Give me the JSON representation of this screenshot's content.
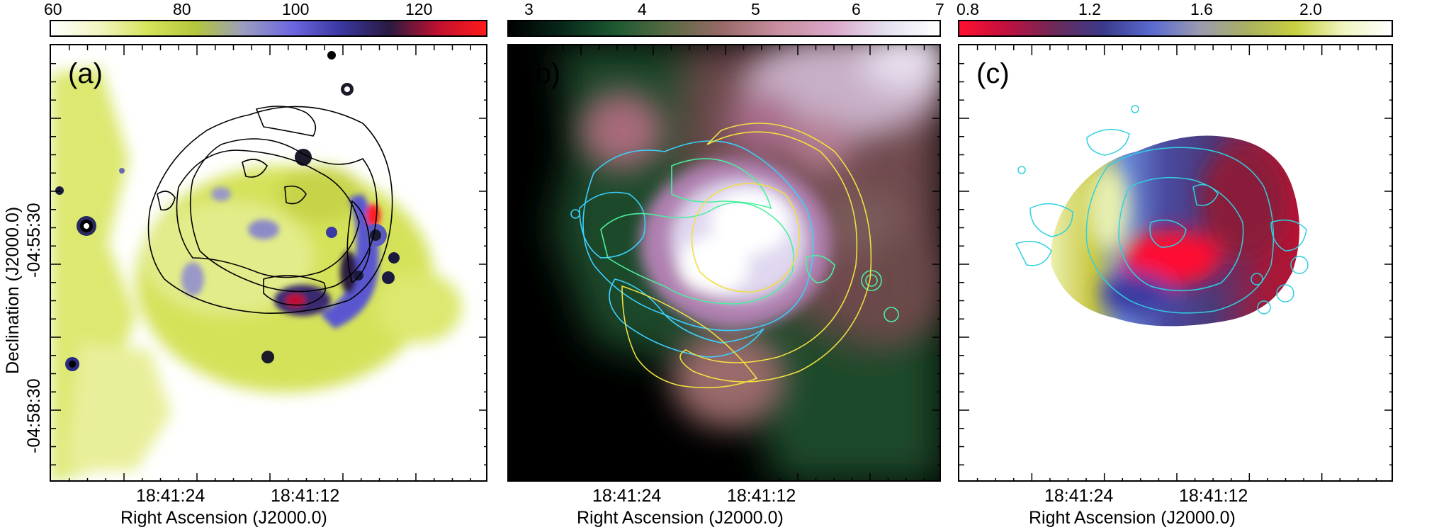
{
  "panels": [
    {
      "letter": "(a)",
      "colorbar": {
        "ticks": [
          "60",
          "80",
          "100",
          "120"
        ],
        "colors": [
          "#ffffff",
          "#f2f5c0",
          "#d6e35b",
          "#b4c63c",
          "#9a9cc0",
          "#6c66e0",
          "#3a37a0",
          "#2a1a40",
          "#c01030",
          "#ff1a1a"
        ]
      },
      "ra_ticks": [
        "18:41:24",
        "18:41:12"
      ],
      "xlabel": "Right Ascension (J2000.0)",
      "contour_color": "#000000"
    },
    {
      "letter": "(b)",
      "colorbar": {
        "ticks": [
          "3",
          "4",
          "5",
          "6",
          "7"
        ],
        "colors": [
          "#000000",
          "#08281a",
          "#1e5a32",
          "#5b6a44",
          "#9a6a6a",
          "#c88fa0",
          "#d9a6c8",
          "#e5e0f0",
          "#ffffff"
        ]
      },
      "ra_ticks": [
        "18:41:24",
        "18:41:12"
      ],
      "xlabel": "Right Ascension (J2000.0)",
      "contour_colors": [
        "#3ad0ff",
        "#4af0a0",
        "#f0e040"
      ]
    },
    {
      "letter": "(c)",
      "colorbar": {
        "ticks": [
          "0.8",
          "1.2",
          "1.6",
          "2.0"
        ],
        "colors": [
          "#ff1030",
          "#c01040",
          "#6a2a5a",
          "#3a3a8a",
          "#5a6ad0",
          "#9a9ab0",
          "#aab060",
          "#c8d040",
          "#f0f5c0",
          "#ffffff"
        ]
      },
      "ra_ticks": [
        "18:41:24",
        "18:41:12"
      ],
      "xlabel": "Right Ascension (J2000.0)",
      "contour_color": "#30d0e0"
    }
  ],
  "ylabel": "Declination (J2000.0)",
  "dec_ticks": [
    "-04:55:30",
    "-04:58:30"
  ]
}
